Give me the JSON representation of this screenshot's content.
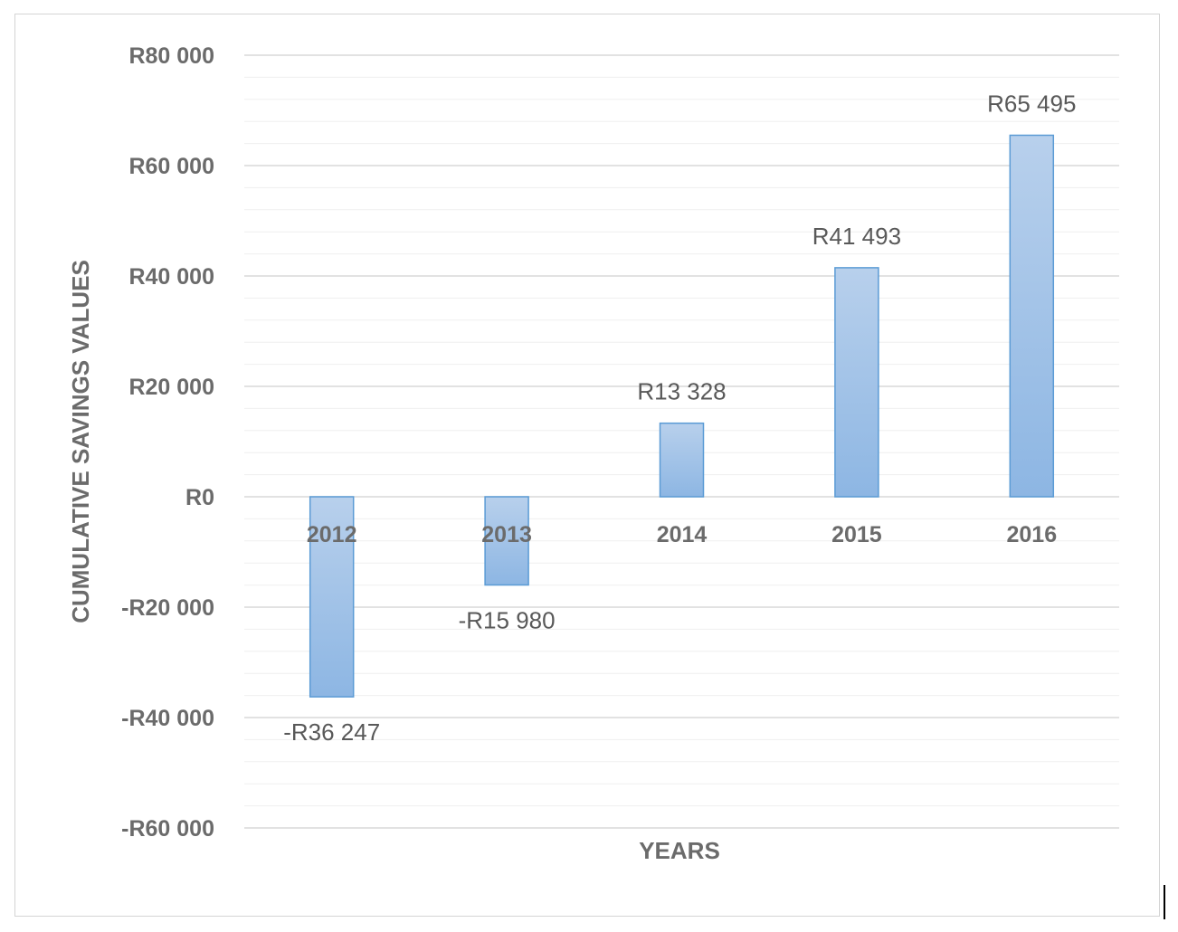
{
  "chart_data": {
    "type": "bar",
    "title": "",
    "xlabel": "YEARS",
    "ylabel": "CUMULATIVE  SAVINGS VALUES",
    "categories": [
      "2012",
      "2013",
      "2014",
      "2015",
      "2016"
    ],
    "values": [
      -36247,
      -15980,
      13328,
      41493,
      65495
    ],
    "data_labels": [
      "-R36 247",
      "-R15 980",
      "R13 328",
      "R41 493",
      "R65 495"
    ],
    "ylim": [
      -60000,
      80000
    ],
    "yticks": [
      80000,
      60000,
      40000,
      20000,
      0,
      -20000,
      -40000,
      -60000
    ],
    "ytick_labels": [
      "R80 000",
      "R60 000",
      "R40 000",
      "R20 000",
      "R0",
      "-R20 000",
      "-R40 000",
      "-R60 000"
    ],
    "grid": true,
    "minor_grid": true,
    "legend": "none",
    "colors": {
      "bar_top": "#b8d0ec",
      "bar_bottom": "#8db6e3",
      "bar_edge": "#5b9bd5",
      "major_grid": "#d9d9d9",
      "minor_grid": "#efefef",
      "text": "#6b6b6b"
    }
  }
}
